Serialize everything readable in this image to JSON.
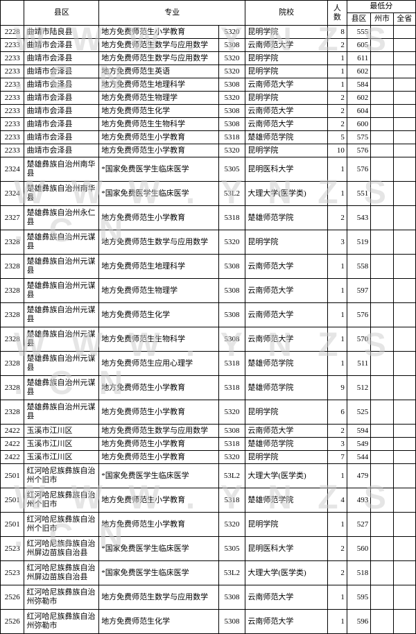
{
  "header": {
    "district": "县区",
    "major": "专业",
    "school": "院校",
    "count": "人数",
    "min_score": "最低分",
    "score_cols": [
      "县区",
      "州市",
      "全省"
    ]
  },
  "watermark_text": "W W W . Y N Z S . C N",
  "rows": [
    {
      "id": "2228",
      "district": "曲靖市陆良县",
      "major": "地方免费师范生小学教育",
      "scode": "5320",
      "school": "昆明学院",
      "count": "8",
      "s1": "555",
      "s2": "",
      "s3": "",
      "h": "s"
    },
    {
      "id": "2233",
      "district": "曲靖市会泽县",
      "major": "地方免费师范生数学与应用数学",
      "scode": "5308",
      "school": "云南师范大学",
      "count": "2",
      "s1": "605",
      "s2": "",
      "s3": "",
      "h": "s"
    },
    {
      "id": "2233",
      "district": "曲靖市会泽县",
      "major": "地方免费师范生数学与应用数学",
      "scode": "5320",
      "school": "昆明学院",
      "count": "1",
      "s1": "611",
      "s2": "",
      "s3": "",
      "h": "s"
    },
    {
      "id": "2233",
      "district": "曲靖市会泽县",
      "major": "地方免费师范生英语",
      "scode": "5320",
      "school": "昆明学院",
      "count": "1",
      "s1": "602",
      "s2": "",
      "s3": "",
      "h": "s"
    },
    {
      "id": "2233",
      "district": "曲靖市会泽县",
      "major": "地方免费师范生地理科学",
      "scode": "5308",
      "school": "云南师范大学",
      "count": "1",
      "s1": "584",
      "s2": "",
      "s3": "",
      "h": "s"
    },
    {
      "id": "2233",
      "district": "曲靖市会泽县",
      "major": "地方免费师范生物理学",
      "scode": "5320",
      "school": "昆明学院",
      "count": "2",
      "s1": "602",
      "s2": "",
      "s3": "",
      "h": "s"
    },
    {
      "id": "2233",
      "district": "曲靖市会泽县",
      "major": "地方免费师范生化学",
      "scode": "5308",
      "school": "云南师范大学",
      "count": "2",
      "s1": "604",
      "s2": "",
      "s3": "",
      "h": "s"
    },
    {
      "id": "2233",
      "district": "曲靖市会泽县",
      "major": "地方免费师范生生物科学",
      "scode": "5308",
      "school": "云南师范大学",
      "count": "2",
      "s1": "600",
      "s2": "",
      "s3": "",
      "h": "s"
    },
    {
      "id": "2233",
      "district": "曲靖市会泽县",
      "major": "地方免费师范生小学教育",
      "scode": "5318",
      "school": "楚雄师范学院",
      "count": "5",
      "s1": "575",
      "s2": "",
      "s3": "",
      "h": "s"
    },
    {
      "id": "2233",
      "district": "曲靖市会泽县",
      "major": "地方免费师范生小学教育",
      "scode": "5320",
      "school": "昆明学院",
      "count": "10",
      "s1": "576",
      "s2": "",
      "s3": "",
      "h": "s"
    },
    {
      "id": "2324",
      "district": "楚雄彝族自治州南华县",
      "major": "*国家免费医学生临床医学",
      "scode": "5305",
      "school": "昆明医科大学",
      "count": "1",
      "s1": "576",
      "s2": "",
      "s3": "",
      "h": "t"
    },
    {
      "id": "2324",
      "district": "楚雄彝族自治州南华县",
      "major": "*国家免费医学生临床医学",
      "scode": "53L2",
      "school": "大理大学(医学类)",
      "count": "1",
      "s1": "551",
      "s2": "",
      "s3": "",
      "h": "t"
    },
    {
      "id": "2327",
      "district": "楚雄彝族自治州永仁县",
      "major": "地方免费师范生小学教育",
      "scode": "5318",
      "school": "楚雄师范学院",
      "count": "2",
      "s1": "543",
      "s2": "",
      "s3": "",
      "h": "t"
    },
    {
      "id": "2328",
      "district": "楚雄彝族自治州元谋县",
      "major": "地方免费师范生数学与应用数学",
      "scode": "5320",
      "school": "昆明学院",
      "count": "3",
      "s1": "519",
      "s2": "",
      "s3": "",
      "h": "t"
    },
    {
      "id": "2328",
      "district": "楚雄彝族自治州元谋县",
      "major": "地方免费师范生地理科学",
      "scode": "5308",
      "school": "云南师范大学",
      "count": "1",
      "s1": "558",
      "s2": "",
      "s3": "",
      "h": "t"
    },
    {
      "id": "2328",
      "district": "楚雄彝族自治州元谋县",
      "major": "地方免费师范生物理学",
      "scode": "5308",
      "school": "云南师范大学",
      "count": "1",
      "s1": "597",
      "s2": "",
      "s3": "",
      "h": "t"
    },
    {
      "id": "2328",
      "district": "楚雄彝族自治州元谋县",
      "major": "地方免费师范生化学",
      "scode": "5308",
      "school": "云南师范大学",
      "count": "1",
      "s1": "576",
      "s2": "",
      "s3": "",
      "h": "t"
    },
    {
      "id": "2328",
      "district": "楚雄彝族自治州元谋县",
      "major": "地方免费师范生生物科学",
      "scode": "5308",
      "school": "云南师范大学",
      "count": "1",
      "s1": "570",
      "s2": "",
      "s3": "",
      "h": "t"
    },
    {
      "id": "2328",
      "district": "楚雄彝族自治州元谋县",
      "major": "地方免费师范生应用心理学",
      "scode": "5318",
      "school": "楚雄师范学院",
      "count": "1",
      "s1": "511",
      "s2": "",
      "s3": "",
      "h": "t"
    },
    {
      "id": "2328",
      "district": "楚雄彝族自治州元谋县",
      "major": "地方免费师范生小学教育",
      "scode": "5318",
      "school": "楚雄师范学院",
      "count": "9",
      "s1": "512",
      "s2": "",
      "s3": "",
      "h": "t"
    },
    {
      "id": "2328",
      "district": "楚雄彝族自治州元谋县",
      "major": "地方免费师范生小学教育",
      "scode": "5320",
      "school": "昆明学院",
      "count": "6",
      "s1": "525",
      "s2": "",
      "s3": "",
      "h": "t"
    },
    {
      "id": "2422",
      "district": "玉溪市江川区",
      "major": "地方免费师范生数学与应用数学",
      "scode": "5308",
      "school": "云南师范大学",
      "count": "2",
      "s1": "594",
      "s2": "",
      "s3": "",
      "h": "s"
    },
    {
      "id": "2422",
      "district": "玉溪市江川区",
      "major": "地方免费师范生小学教育",
      "scode": "5318",
      "school": "楚雄师范学院",
      "count": "3",
      "s1": "549",
      "s2": "",
      "s3": "",
      "h": "s"
    },
    {
      "id": "2422",
      "district": "玉溪市江川区",
      "major": "地方免费师范生小学教育",
      "scode": "5320",
      "school": "昆明学院",
      "count": "7",
      "s1": "544",
      "s2": "",
      "s3": "",
      "h": "s"
    },
    {
      "id": "2501",
      "district": "红河哈尼族彝族自治州个旧市",
      "major": "*国家免费医学生临床医学",
      "scode": "53L2",
      "school": "大理大学(医学类)",
      "count": "1",
      "s1": "479",
      "s2": "",
      "s3": "",
      "h": "t"
    },
    {
      "id": "2501",
      "district": "红河哈尼族彝族自治州个旧市",
      "major": "地方免费师范生小学教育",
      "scode": "5318",
      "school": "楚雄师范学院",
      "count": "4",
      "s1": "493",
      "s2": "",
      "s3": "",
      "h": "t"
    },
    {
      "id": "2501",
      "district": "红河哈尼族彝族自治州个旧市",
      "major": "地方免费师范生小学教育",
      "scode": "5320",
      "school": "昆明学院",
      "count": "1",
      "s1": "527",
      "s2": "",
      "s3": "",
      "h": "t"
    },
    {
      "id": "2523",
      "district": "红河哈尼族彝族自治州屏边苗族自治县",
      "major": "*国家免费医学生临床医学",
      "scode": "5305",
      "school": "昆明医科大学",
      "count": "2",
      "s1": "560",
      "s2": "",
      "s3": "",
      "h": "t"
    },
    {
      "id": "2523",
      "district": "红河哈尼族彝族自治州屏边苗族自治县",
      "major": "*国家免费医学生临床医学",
      "scode": "53L2",
      "school": "大理大学(医学类)",
      "count": "2",
      "s1": "518",
      "s2": "",
      "s3": "",
      "h": "t"
    },
    {
      "id": "2526",
      "district": "红河哈尼族彝族自治州弥勒市",
      "major": "地方免费师范生数学与应用数学",
      "scode": "5308",
      "school": "云南师范大学",
      "count": "1",
      "s1": "595",
      "s2": "",
      "s3": "",
      "h": "t"
    },
    {
      "id": "2526",
      "district": "红河哈尼族彝族自治州弥勒市",
      "major": "地方免费师范生化学",
      "scode": "5308",
      "school": "云南师范大学",
      "count": "1",
      "s1": "596",
      "s2": "",
      "s3": "",
      "h": "t"
    }
  ]
}
